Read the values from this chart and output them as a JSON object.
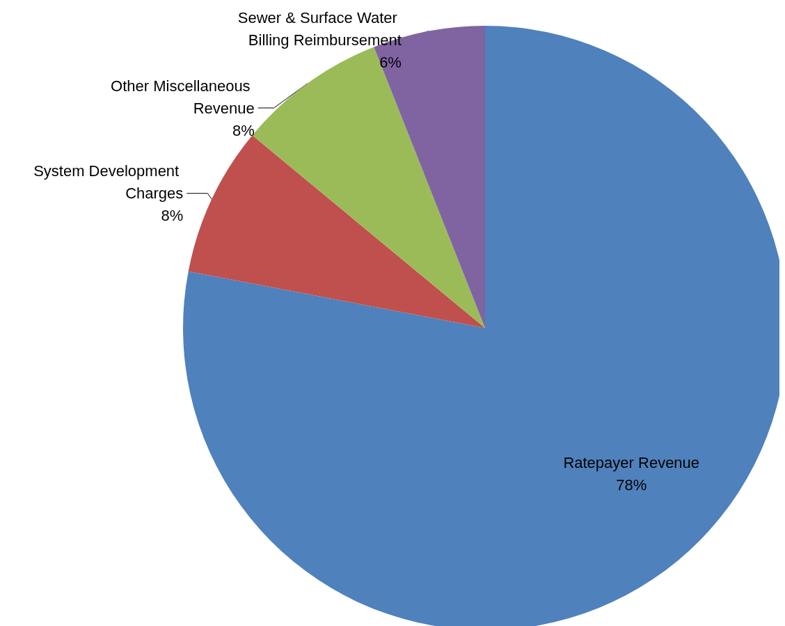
{
  "chart_data": {
    "type": "pie",
    "categories": [
      "Ratepayer Revenue",
      "System Development Charges",
      "Other Miscellaneous Revenue",
      "Sewer & Surface Water Billing Reimbursement"
    ],
    "values": [
      78,
      8,
      8,
      6
    ],
    "colors": [
      "#4f81bd",
      "#c0504d",
      "#9bbb59",
      "#8064a2"
    ],
    "value_labels": [
      "78%",
      "8%",
      "8%",
      "6%"
    ],
    "legend": false
  }
}
